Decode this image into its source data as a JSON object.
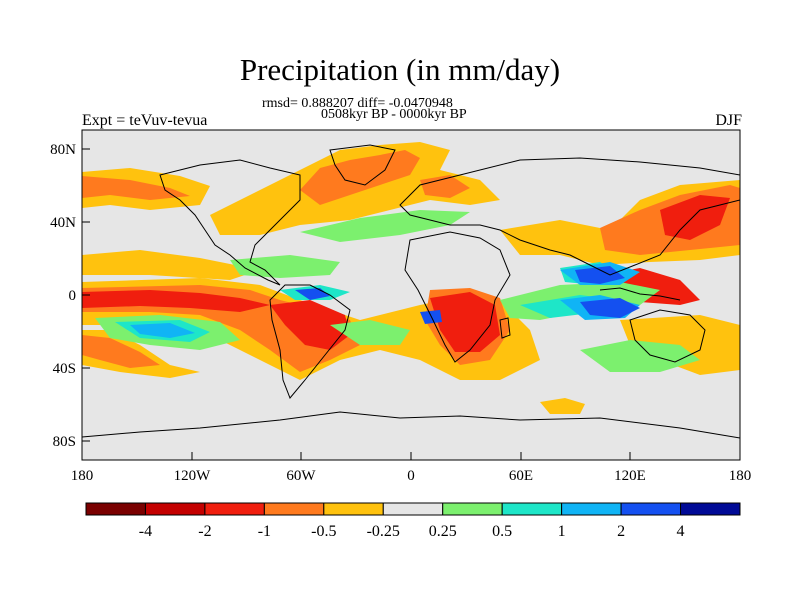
{
  "header": {
    "title": "Precipitation (in mm/day)",
    "stats": "rmsd= 0.888207 diff= -0.0470948",
    "period": "0508kyr BP - 0000kyr BP",
    "experiment": "Expt = teVuv-tevua",
    "season": "DJF"
  },
  "axes": {
    "lat_ticks": [
      "80N",
      "40N",
      "0",
      "40S",
      "80S"
    ],
    "lon_ticks": [
      "180",
      "120W",
      "60W",
      "0",
      "60E",
      "120E",
      "180"
    ]
  },
  "colorbar": {
    "colors": [
      "#7a0000",
      "#c40000",
      "#f01e0e",
      "#ff7a1e",
      "#ffc20e",
      "#e6e6e6",
      "#7cf06e",
      "#1ee6c8",
      "#10b4f5",
      "#1450f0",
      "#000a96"
    ],
    "labels": [
      "-4",
      "-2",
      "-1",
      "-0.5",
      "-0.25",
      "0.25",
      "0.5",
      "1",
      "2",
      "4"
    ]
  }
}
